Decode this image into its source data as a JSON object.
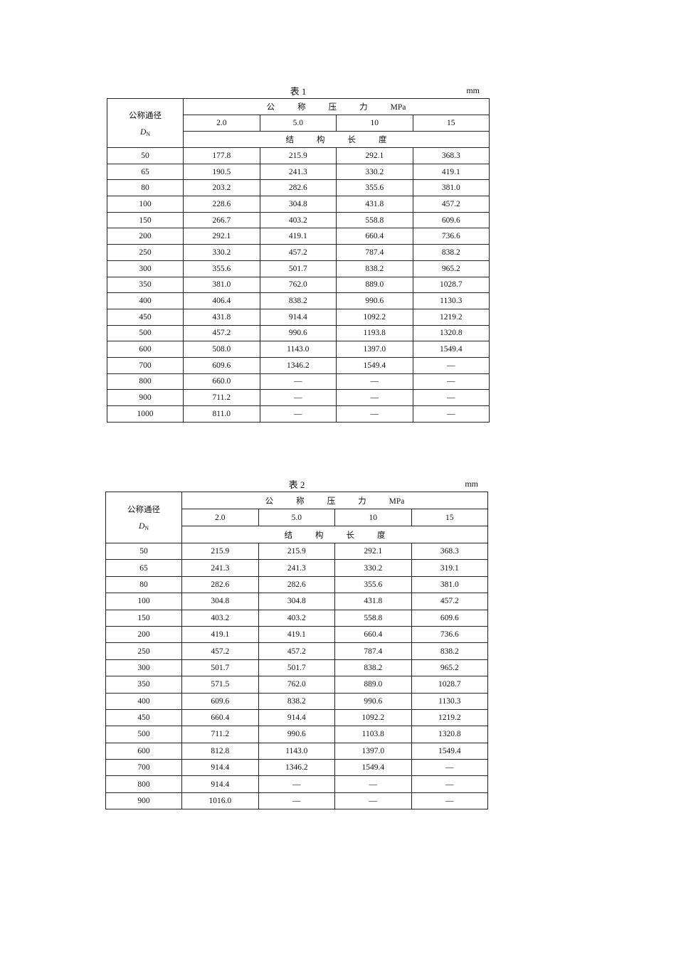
{
  "tables": [
    {
      "caption": "表 1",
      "unit": "mm",
      "header": {
        "nominal_diameter": "公称通径",
        "dn_symbol": "D",
        "dn_subscript": "N",
        "pressure_label": [
          "公",
          "称",
          "压",
          "力",
          "MPa"
        ],
        "pressures": [
          "2.0",
          "5.0",
          "10",
          "15"
        ],
        "length_label": [
          "结",
          "构",
          "长",
          "度"
        ]
      },
      "rows": [
        [
          "50",
          "177.8",
          "215.9",
          "292.1",
          "368.3"
        ],
        [
          "65",
          "190.5",
          "241.3",
          "330.2",
          "419.1"
        ],
        [
          "80",
          "203.2",
          "282.6",
          "355.6",
          "381.0"
        ],
        [
          "100",
          "228.6",
          "304.8",
          "431.8",
          "457.2"
        ],
        [
          "150",
          "266.7",
          "403.2",
          "558.8",
          "609.6"
        ],
        [
          "200",
          "292.1",
          "419.1",
          "660.4",
          "736.6"
        ],
        [
          "250",
          "330.2",
          "457.2",
          "787.4",
          "838.2"
        ],
        [
          "300",
          "355.6",
          "501.7",
          "838.2",
          "965.2"
        ],
        [
          "350",
          "381.0",
          "762.0",
          "889.0",
          "1028.7"
        ],
        [
          "400",
          "406.4",
          "838.2",
          "990.6",
          "1130.3"
        ],
        [
          "450",
          "431.8",
          "914.4",
          "1092.2",
          "1219.2"
        ],
        [
          "500",
          "457.2",
          "990.6",
          "1193.8",
          "1320.8"
        ],
        [
          "600",
          "508.0",
          "1143.0",
          "1397.0",
          "1549.4"
        ],
        [
          "700",
          "609.6",
          "1346.2",
          "1549.4",
          "—"
        ],
        [
          "800",
          "660.0",
          "—",
          "—",
          "—"
        ],
        [
          "900",
          "711.2",
          "—",
          "—",
          "—"
        ],
        [
          "1000",
          "811.0",
          "—",
          "—",
          "—"
        ]
      ]
    },
    {
      "caption": "表 2",
      "unit": "mm",
      "header": {
        "nominal_diameter": "公称通径",
        "dn_symbol": "D",
        "dn_subscript": "N",
        "pressure_label": [
          "公",
          "称",
          "压",
          "力",
          "MPa"
        ],
        "pressures": [
          "2.0",
          "5.0",
          "10",
          "15"
        ],
        "length_label": [
          "结",
          "构",
          "长",
          "度"
        ]
      },
      "rows": [
        [
          "50",
          "215.9",
          "215.9",
          "292.1",
          "368.3"
        ],
        [
          "65",
          "241.3",
          "241.3",
          "330.2",
          "319.1"
        ],
        [
          "80",
          "282.6",
          "282.6",
          "355.6",
          "381.0"
        ],
        [
          "100",
          "304.8",
          "304.8",
          "431.8",
          "457.2"
        ],
        [
          "150",
          "403.2",
          "403.2",
          "558.8",
          "609.6"
        ],
        [
          "200",
          "419.1",
          "419.1",
          "660.4",
          "736.6"
        ],
        [
          "250",
          "457.2",
          "457.2",
          "787.4",
          "838.2"
        ],
        [
          "300",
          "501.7",
          "501.7",
          "838.2",
          "965.2"
        ],
        [
          "350",
          "571.5",
          "762.0",
          "889.0",
          "1028.7"
        ],
        [
          "400",
          "609.6",
          "838.2",
          "990.6",
          "1130.3"
        ],
        [
          "450",
          "660.4",
          "914.4",
          "1092.2",
          "1219.2"
        ],
        [
          "500",
          "711.2",
          "990.6",
          "1103.8",
          "1320.8"
        ],
        [
          "600",
          "812.8",
          "1143.0",
          "1397.0",
          "1549.4"
        ],
        [
          "700",
          "914.4",
          "1346.2",
          "1549.4",
          "—"
        ],
        [
          "800",
          "914.4",
          "—",
          "—",
          "—"
        ],
        [
          "900",
          "1016.0",
          "—",
          "—",
          "—"
        ]
      ]
    }
  ]
}
